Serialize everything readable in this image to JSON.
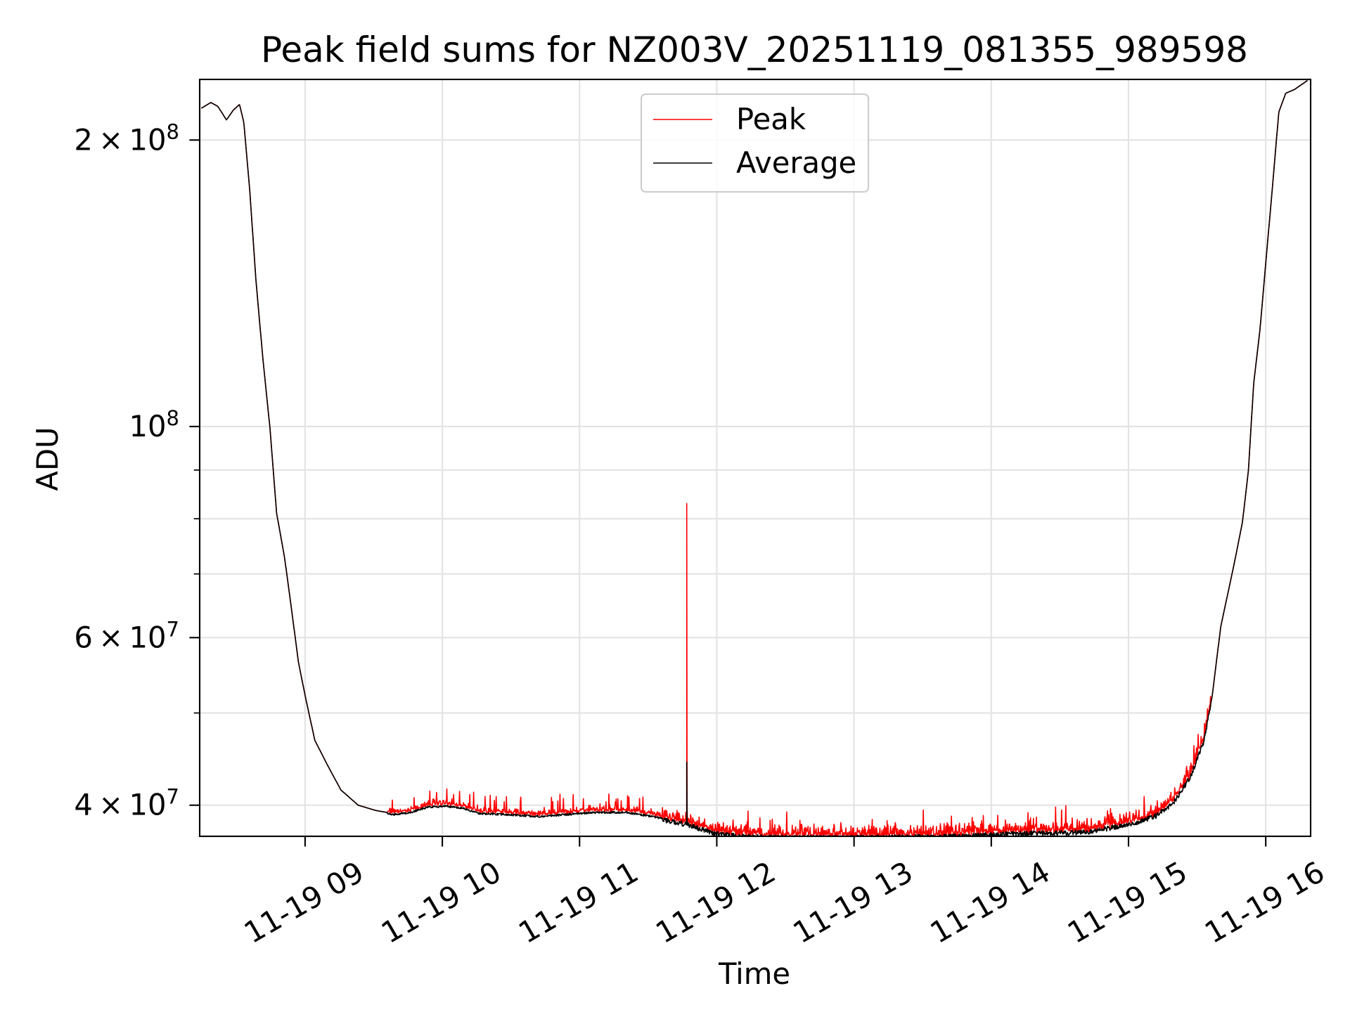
{
  "chart_data": {
    "type": "line",
    "title": "Peak field sums for NZ003V_20251119_081355_989598",
    "xlabel": "Time",
    "ylabel": "ADU",
    "yscale": "log",
    "x_unit": "hours of 2025-11-19",
    "xlim": [
      8.232,
      16.327
    ],
    "ylim": [
      37100000.0,
      231600000.0
    ],
    "grid": true,
    "legend": {
      "placement": "upper-center",
      "entries": [
        "Peak",
        "Average"
      ]
    },
    "x_ticks": [
      {
        "value": 9,
        "label": "11-19 09"
      },
      {
        "value": 10,
        "label": "11-19 10"
      },
      {
        "value": 11,
        "label": "11-19 11"
      },
      {
        "value": 12,
        "label": "11-19 12"
      },
      {
        "value": 13,
        "label": "11-19 13"
      },
      {
        "value": 14,
        "label": "11-19 14"
      },
      {
        "value": 15,
        "label": "11-19 15"
      },
      {
        "value": 16,
        "label": "11-19 16"
      }
    ],
    "y_ticks": [
      {
        "value": 200000000.0,
        "mant": "2",
        "exp": "8"
      },
      {
        "value": 100000000.0,
        "mant": "",
        "exp": "8"
      },
      {
        "value": 60000000.0,
        "mant": "6",
        "exp": "7"
      },
      {
        "value": 40000000.0,
        "mant": "4",
        "exp": "7"
      }
    ],
    "y_minor_ticks": [
      90000000.0,
      80000000.0,
      70000000.0,
      50000000.0
    ],
    "series": [
      {
        "name": "Average",
        "color": "#000000",
        "x": [
          8.244,
          8.313,
          8.364,
          8.427,
          8.477,
          8.522,
          8.553,
          8.597,
          8.641,
          8.692,
          8.743,
          8.793,
          8.85,
          8.901,
          8.951,
          9.002,
          9.071,
          9.166,
          9.261,
          9.387,
          9.513,
          9.64,
          9.766,
          9.892,
          10.019,
          10.145,
          10.271,
          10.461,
          10.713,
          10.903,
          11.093,
          11.345,
          11.535,
          11.787,
          11.977,
          12.166,
          12.482,
          13.114,
          13.746,
          14.062,
          14.377,
          14.693,
          15.009,
          15.199,
          15.325,
          15.451,
          15.546,
          15.609,
          15.672,
          15.767,
          15.83,
          15.874,
          15.912,
          15.957,
          16.001,
          16.051,
          16.095,
          16.146,
          16.209,
          16.304
        ],
        "y": [
          216000000.0,
          219000000.0,
          217000000.0,
          210000000.0,
          215000000.0,
          218000000.0,
          209000000.0,
          177000000.0,
          143000000.0,
          118000000.0,
          100000000.0,
          81000000.0,
          72900000.0,
          64300000.0,
          56600000.0,
          52000000.0,
          46800000.0,
          44000000.0,
          41500000.0,
          40000000.0,
          39500000.0,
          39200000.0,
          39400000.0,
          39900000.0,
          40000000.0,
          39800000.0,
          39300000.0,
          39200000.0,
          39000000.0,
          39200000.0,
          39400000.0,
          39400000.0,
          39000000.0,
          38400000.0,
          37600000.0,
          37300000.0,
          37200000.0,
          37200000.0,
          37300000.0,
          37500000.0,
          37600000.0,
          37700000.0,
          38400000.0,
          39200000.0,
          40400000.0,
          43100000.0,
          46800000.0,
          52000000.0,
          61600000.0,
          71400000.0,
          79300000.0,
          90000000.0,
          111000000.0,
          126000000.0,
          149000000.0,
          180000000.0,
          214000000.0,
          224000000.0,
          226000000.0,
          231000000.0
        ],
        "spikes": [
          {
            "x": 11.781,
            "y": 44400000.0
          }
        ]
      },
      {
        "name": "Peak",
        "color": "#ff0000",
        "follows": "Average",
        "noise_excess_fraction": 0.03,
        "noisy_range": [
          9.6,
          15.6
        ],
        "spikes": [
          {
            "x": 11.781,
            "y": 83000000.0
          }
        ]
      }
    ]
  }
}
